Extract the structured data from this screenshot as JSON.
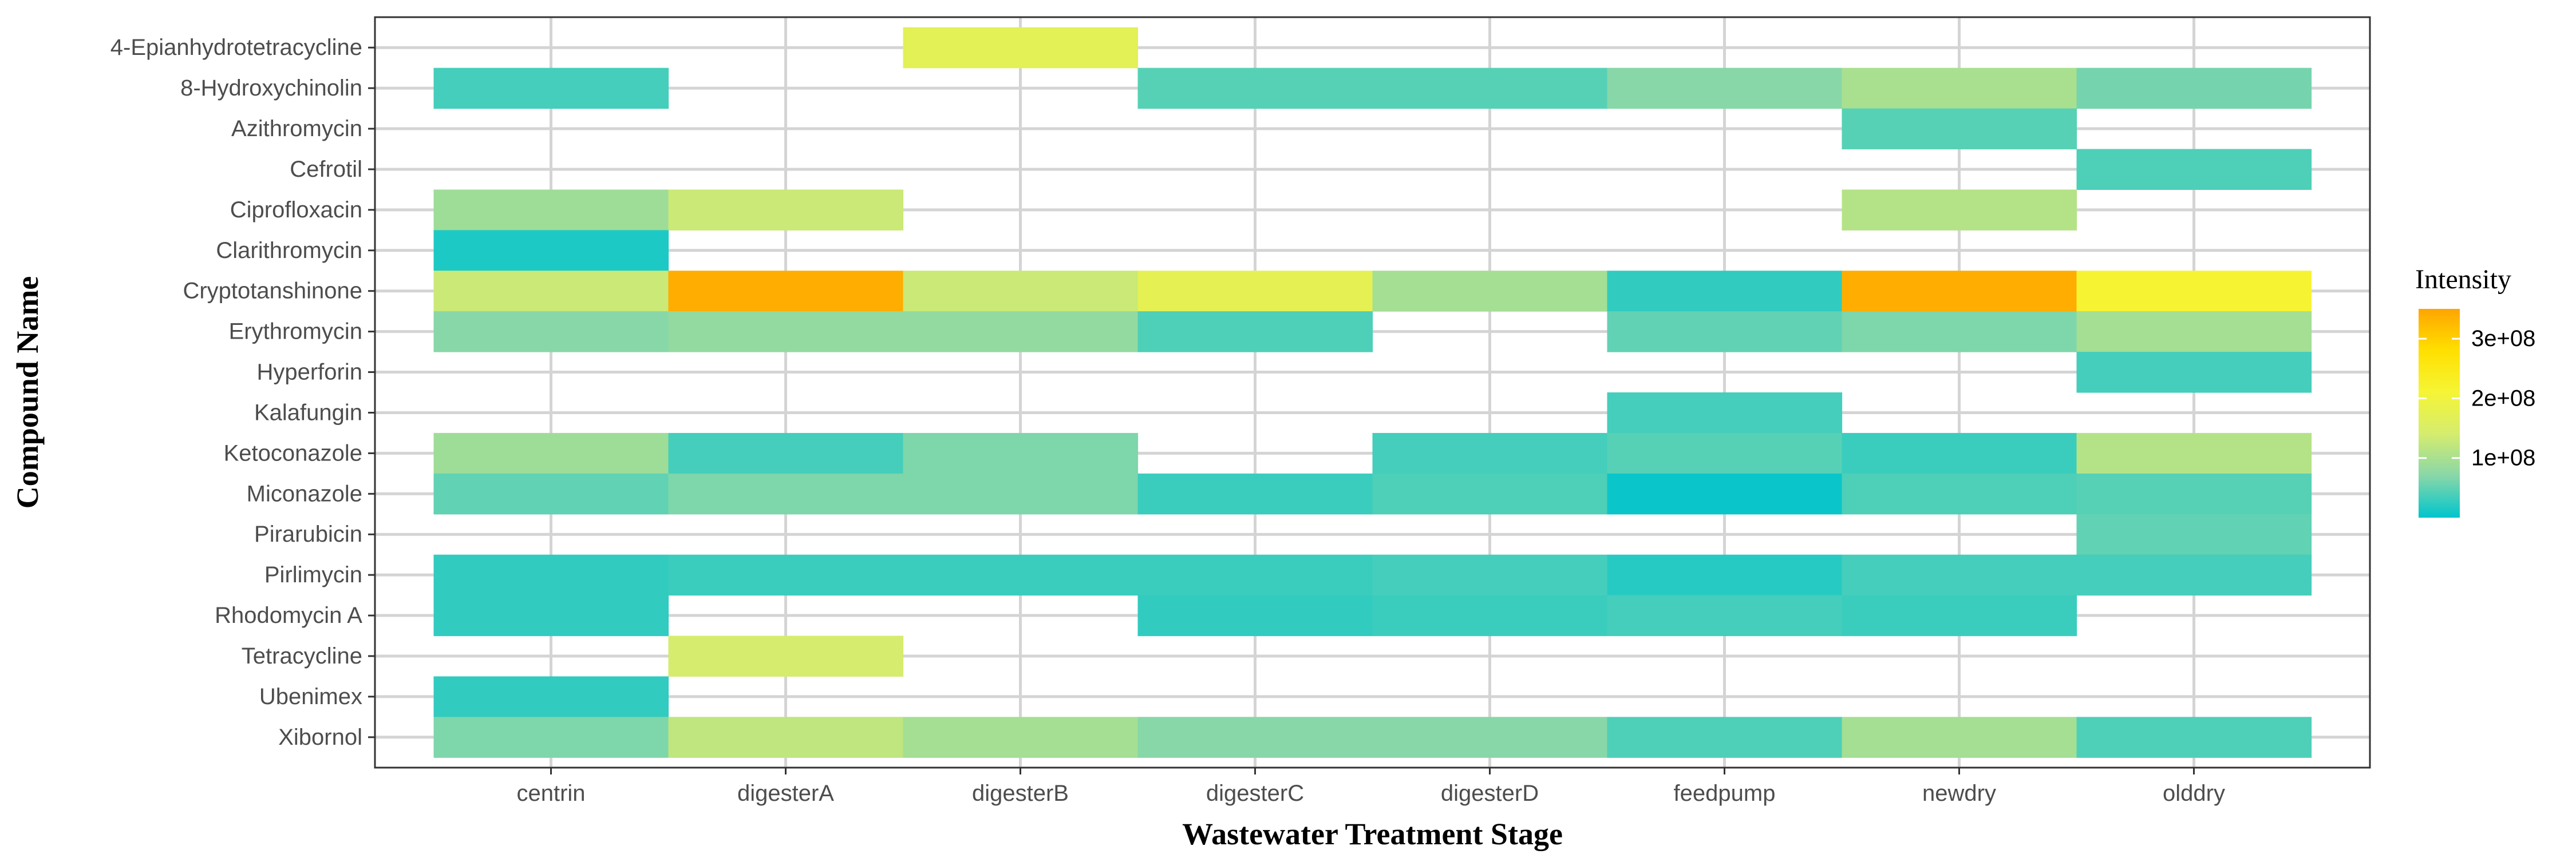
{
  "chart_data": {
    "type": "heatmap",
    "xlabel": "Wastewater Treatment Stage",
    "ylabel": "Compound Name",
    "x_categories": [
      "centrin",
      "digesterA",
      "digesterB",
      "digesterC",
      "digesterD",
      "feedpump",
      "newdry",
      "olddry"
    ],
    "y_categories": [
      "4-Epianhydrotetracycline",
      "8-Hydroxychinolin",
      "Azithromycin",
      "Cefrotil",
      "Ciprofloxacin",
      "Clarithromycin",
      "Cryptotanshinone",
      "Erythromycin",
      "Hyperforin",
      "Kalafungin",
      "Ketoconazole",
      "Miconazole",
      "Pirarubicin",
      "Pirlimycin",
      "Rhodomycin A",
      "Tetracycline",
      "Ubenimex",
      "Xibornol"
    ],
    "cells": [
      {
        "x": "digesterB",
        "y": "4-Epianhydrotetracycline",
        "value": 170000000
      },
      {
        "x": "centrin",
        "y": "8-Hydroxychinolin",
        "value": 35000000
      },
      {
        "x": "digesterC",
        "y": "8-Hydroxychinolin",
        "value": 45000000
      },
      {
        "x": "digesterD",
        "y": "8-Hydroxychinolin",
        "value": 45000000
      },
      {
        "x": "feedpump",
        "y": "8-Hydroxychinolin",
        "value": 70000000
      },
      {
        "x": "newdry",
        "y": "8-Hydroxychinolin",
        "value": 100000000
      },
      {
        "x": "olddry",
        "y": "8-Hydroxychinolin",
        "value": 60000000
      },
      {
        "x": "newdry",
        "y": "Azithromycin",
        "value": 45000000
      },
      {
        "x": "olddry",
        "y": "Cefrotil",
        "value": 40000000
      },
      {
        "x": "centrin",
        "y": "Ciprofloxacin",
        "value": 90000000
      },
      {
        "x": "digesterA",
        "y": "Ciprofloxacin",
        "value": 130000000
      },
      {
        "x": "newdry",
        "y": "Ciprofloxacin",
        "value": 110000000
      },
      {
        "x": "centrin",
        "y": "Clarithromycin",
        "value": 15000000
      },
      {
        "x": "centrin",
        "y": "Cryptotanshinone",
        "value": 130000000
      },
      {
        "x": "digesterA",
        "y": "Cryptotanshinone",
        "value": 340000000
      },
      {
        "x": "digesterB",
        "y": "Cryptotanshinone",
        "value": 130000000
      },
      {
        "x": "digesterC",
        "y": "Cryptotanshinone",
        "value": 175000000
      },
      {
        "x": "digesterD",
        "y": "Cryptotanshinone",
        "value": 95000000
      },
      {
        "x": "feedpump",
        "y": "Cryptotanshinone",
        "value": 25000000
      },
      {
        "x": "newdry",
        "y": "Cryptotanshinone",
        "value": 340000000
      },
      {
        "x": "olddry",
        "y": "Cryptotanshinone",
        "value": 215000000
      },
      {
        "x": "centrin",
        "y": "Erythromycin",
        "value": 70000000
      },
      {
        "x": "digesterA",
        "y": "Erythromycin",
        "value": 80000000
      },
      {
        "x": "digesterB",
        "y": "Erythromycin",
        "value": 80000000
      },
      {
        "x": "digesterC",
        "y": "Erythromycin",
        "value": 40000000
      },
      {
        "x": "feedpump",
        "y": "Erythromycin",
        "value": 50000000
      },
      {
        "x": "newdry",
        "y": "Erythromycin",
        "value": 65000000
      },
      {
        "x": "olddry",
        "y": "Erythromycin",
        "value": 95000000
      },
      {
        "x": "olddry",
        "y": "Hyperforin",
        "value": 35000000
      },
      {
        "x": "feedpump",
        "y": "Kalafungin",
        "value": 35000000
      },
      {
        "x": "centrin",
        "y": "Ketoconazole",
        "value": 90000000
      },
      {
        "x": "digesterA",
        "y": "Ketoconazole",
        "value": 35000000
      },
      {
        "x": "digesterB",
        "y": "Ketoconazole",
        "value": 65000000
      },
      {
        "x": "digesterD",
        "y": "Ketoconazole",
        "value": 35000000
      },
      {
        "x": "feedpump",
        "y": "Ketoconazole",
        "value": 45000000
      },
      {
        "x": "newdry",
        "y": "Ketoconazole",
        "value": 30000000
      },
      {
        "x": "olddry",
        "y": "Ketoconazole",
        "value": 110000000
      },
      {
        "x": "centrin",
        "y": "Miconazole",
        "value": 50000000
      },
      {
        "x": "digesterA",
        "y": "Miconazole",
        "value": 65000000
      },
      {
        "x": "digesterB",
        "y": "Miconazole",
        "value": 65000000
      },
      {
        "x": "digesterC",
        "y": "Miconazole",
        "value": 30000000
      },
      {
        "x": "digesterD",
        "y": "Miconazole",
        "value": 40000000
      },
      {
        "x": "feedpump",
        "y": "Miconazole",
        "value": 5000000
      },
      {
        "x": "newdry",
        "y": "Miconazole",
        "value": 40000000
      },
      {
        "x": "olddry",
        "y": "Miconazole",
        "value": 45000000
      },
      {
        "x": "olddry",
        "y": "Pirarubicin",
        "value": 50000000
      },
      {
        "x": "centrin",
        "y": "Pirlimycin",
        "value": 25000000
      },
      {
        "x": "digesterA",
        "y": "Pirlimycin",
        "value": 30000000
      },
      {
        "x": "digesterB",
        "y": "Pirlimycin",
        "value": 30000000
      },
      {
        "x": "digesterC",
        "y": "Pirlimycin",
        "value": 30000000
      },
      {
        "x": "digesterD",
        "y": "Pirlimycin",
        "value": 35000000
      },
      {
        "x": "feedpump",
        "y": "Pirlimycin",
        "value": 20000000
      },
      {
        "x": "newdry",
        "y": "Pirlimycin",
        "value": 35000000
      },
      {
        "x": "olddry",
        "y": "Pirlimycin",
        "value": 35000000
      },
      {
        "x": "centrin",
        "y": "Rhodomycin A",
        "value": 25000000
      },
      {
        "x": "digesterC",
        "y": "Rhodomycin A",
        "value": 25000000
      },
      {
        "x": "digesterD",
        "y": "Rhodomycin A",
        "value": 30000000
      },
      {
        "x": "feedpump",
        "y": "Rhodomycin A",
        "value": 35000000
      },
      {
        "x": "newdry",
        "y": "Rhodomycin A",
        "value": 30000000
      },
      {
        "x": "digesterA",
        "y": "Tetracycline",
        "value": 140000000
      },
      {
        "x": "centrin",
        "y": "Ubenimex",
        "value": 25000000
      },
      {
        "x": "centrin",
        "y": "Xibornol",
        "value": 65000000
      },
      {
        "x": "digesterA",
        "y": "Xibornol",
        "value": 120000000
      },
      {
        "x": "digesterB",
        "y": "Xibornol",
        "value": 95000000
      },
      {
        "x": "digesterC",
        "y": "Xibornol",
        "value": 70000000
      },
      {
        "x": "digesterD",
        "y": "Xibornol",
        "value": 70000000
      },
      {
        "x": "feedpump",
        "y": "Xibornol",
        "value": 40000000
      },
      {
        "x": "newdry",
        "y": "Xibornol",
        "value": 95000000
      },
      {
        "x": "olddry",
        "y": "Xibornol",
        "value": 40000000
      }
    ],
    "legend": {
      "title": "Intensity",
      "position": "right",
      "ticks": [
        {
          "value": 100000000,
          "label": "1e+08"
        },
        {
          "value": 200000000,
          "label": "2e+08"
        },
        {
          "value": 300000000,
          "label": "3e+08"
        }
      ],
      "range": [
        0,
        350000000
      ]
    },
    "color_scale": [
      "#00c5cd",
      "#88d7a8",
      "#d5ec6e",
      "#f5f536",
      "#ffe000",
      "#ffa500"
    ],
    "grid": true
  }
}
